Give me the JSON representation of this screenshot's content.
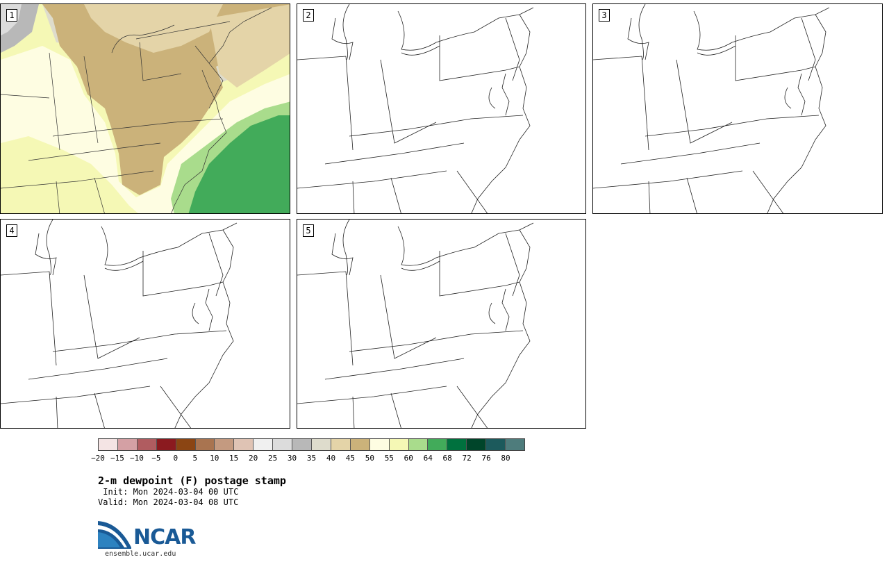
{
  "panels": [
    {
      "number": "1",
      "filled": true
    },
    {
      "number": "2",
      "filled": false
    },
    {
      "number": "3",
      "filled": false
    },
    {
      "number": "4",
      "filled": false
    },
    {
      "number": "5",
      "filled": false
    }
  ],
  "colorbar": {
    "colors": [
      "#f4e4e4",
      "#d4a0a4",
      "#b05c60",
      "#8b1a1f",
      "#8b4513",
      "#a97450",
      "#c49a80",
      "#dfc3b4",
      "#f0f0f0",
      "#dcdcdc",
      "#b8b8b8",
      "#dedccc",
      "#e4d4a8",
      "#cbb27a",
      "#fefde2",
      "#f5f8b5",
      "#a9dc8c",
      "#42ab5a",
      "#00713e",
      "#00452a",
      "#1c5a5c",
      "#4e7c7c"
    ],
    "tick_labels": [
      "−20",
      "−15",
      "−10",
      "−5",
      "0",
      "5",
      "10",
      "15",
      "20",
      "25",
      "30",
      "35",
      "40",
      "45",
      "50",
      "55",
      "60",
      "64",
      "68",
      "72",
      "76",
      "80"
    ]
  },
  "title": "2-m dewpoint (F) postage stamp",
  "init": " Init: Mon 2024-03-04 00 UTC",
  "valid": "Valid: Mon 2024-03-04 08 UTC",
  "logo": {
    "name": "NCAR"
  },
  "site": "ensemble.ucar.edu"
}
